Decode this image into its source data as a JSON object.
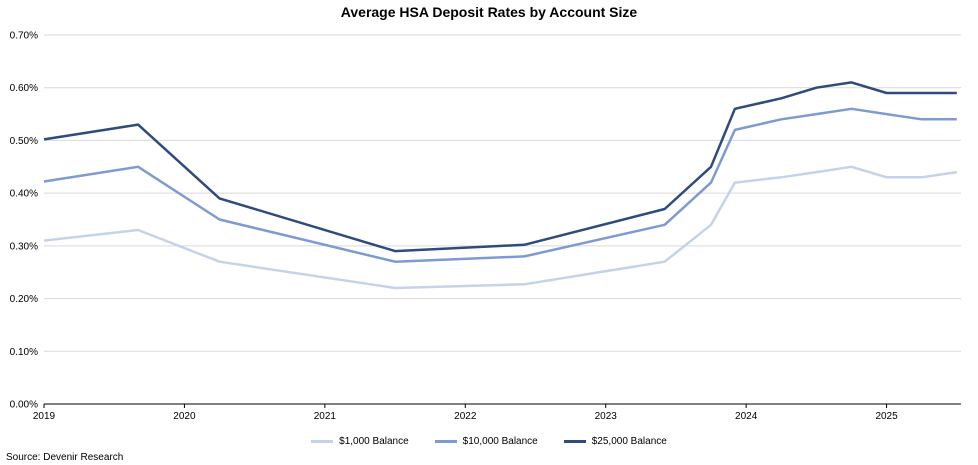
{
  "chart_data": {
    "type": "line",
    "title": "Average HSA Deposit Rates by Account Size",
    "xlabel": "",
    "ylabel": "",
    "ylim": [
      0,
      0.7
    ],
    "xlim": [
      2019.0,
      2025.53
    ],
    "y_ticks": [
      "0.00%",
      "0.10%",
      "0.20%",
      "0.30%",
      "0.40%",
      "0.50%",
      "0.60%",
      "0.70%"
    ],
    "x_ticks": [
      "2019",
      "2020",
      "2021",
      "2022",
      "2023",
      "2024",
      "2025"
    ],
    "grid": "horizontal",
    "legend_position": "bottom",
    "x": [
      2019.0,
      2019.67,
      2020.25,
      2021.5,
      2022.42,
      2023.42,
      2023.75,
      2023.92,
      2024.25,
      2024.5,
      2024.75,
      2025.0,
      2025.25,
      2025.5
    ],
    "series": [
      {
        "name": "$1,000 Balance",
        "color": "#c5d3ea",
        "values": [
          0.31,
          0.33,
          0.27,
          0.22,
          0.227,
          0.27,
          0.34,
          0.42,
          0.43,
          0.44,
          0.45,
          0.43,
          0.43,
          0.44
        ]
      },
      {
        "name": "$10,000 Balance",
        "color": "#7d9bd1",
        "values": [
          0.422,
          0.45,
          0.35,
          0.27,
          0.28,
          0.34,
          0.42,
          0.52,
          0.54,
          0.55,
          0.56,
          0.55,
          0.54,
          0.54
        ]
      },
      {
        "name": "$25,000 Balance",
        "color": "#2f4b7c",
        "values": [
          0.502,
          0.53,
          0.39,
          0.29,
          0.302,
          0.37,
          0.45,
          0.56,
          0.58,
          0.6,
          0.61,
          0.59,
          0.59,
          0.59
        ]
      }
    ]
  },
  "source": "Source: Devenir Research"
}
